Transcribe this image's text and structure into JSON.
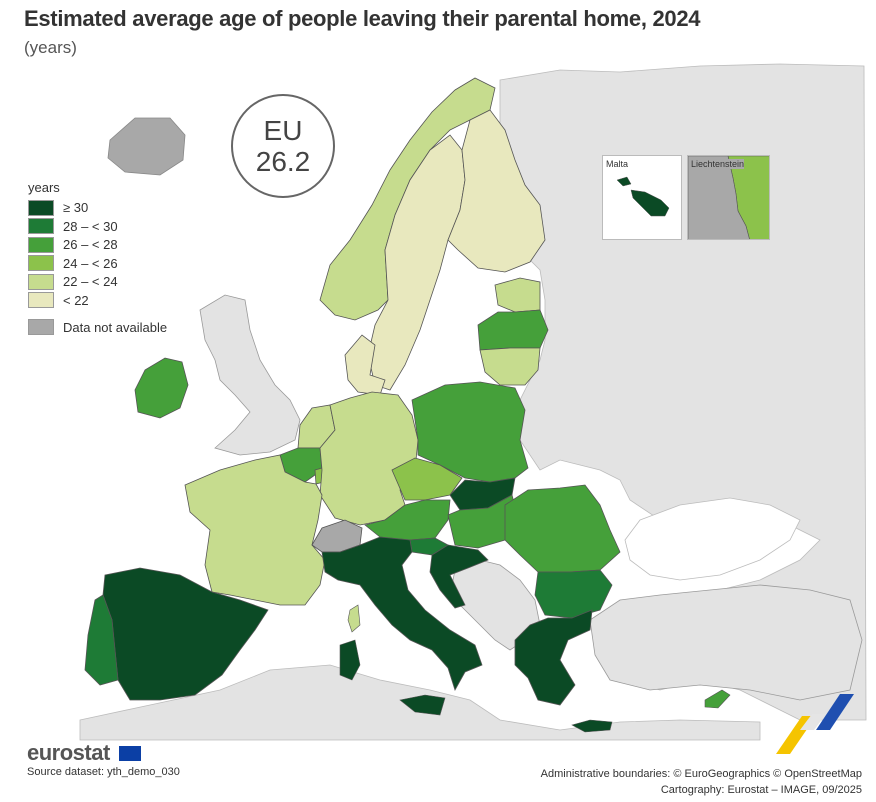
{
  "title": "Estimated average age of people leaving their parental home, 2024",
  "subtitle": "(years)",
  "eu_badge": {
    "label": "EU",
    "value": "26.2"
  },
  "legend": {
    "title": "years",
    "classes": [
      {
        "label": "≥ 30",
        "color": "#0b4a25"
      },
      {
        "label": "28 – < 30",
        "color": "#1e7b36"
      },
      {
        "label": "26 – < 28",
        "color": "#45a03a"
      },
      {
        "label": "24 – < 26",
        "color": "#8cc24b"
      },
      {
        "label": "22 – < 24",
        "color": "#c6dc8e"
      },
      {
        "label": "< 22",
        "color": "#e8e8be"
      }
    ],
    "na": {
      "label": "Data not available",
      "color": "#a8a8a8"
    }
  },
  "insets": {
    "malta": "Malta",
    "liechtenstein": "Liechtenstein"
  },
  "colors": {
    "sea": "#ffffff",
    "non_covered": "#e3e3e3",
    "border": "#555555"
  },
  "footer": {
    "logo": "eurostat",
    "source": "Source dataset: yth_demo_030",
    "boundaries": "Administrative boundaries: © EuroGeographics © OpenStreetMap",
    "cartography": "Cartography: Eurostat – IMAGE, 09/2025"
  }
}
